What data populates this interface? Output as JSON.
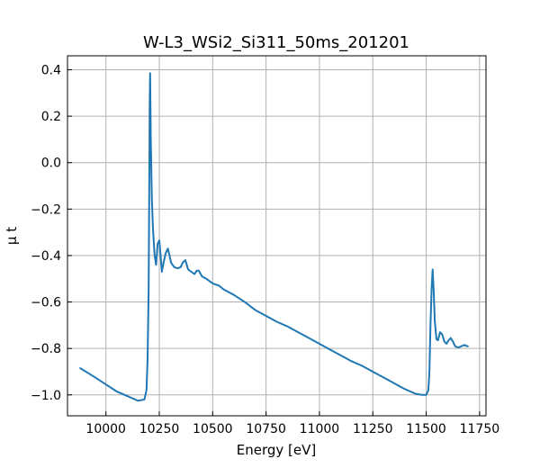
{
  "chart_data": {
    "type": "line",
    "title": "W-L3_WSi2_Si311_50ms_201201",
    "xlabel": "Energy [eV]",
    "ylabel": "μ t",
    "xlim": [
      9820,
      11780
    ],
    "ylim": [
      -1.09,
      0.46
    ],
    "xticks": [
      10000,
      10250,
      10500,
      10750,
      11000,
      11250,
      11500,
      11750
    ],
    "xtick_labels": [
      "10000",
      "10250",
      "10500",
      "10750",
      "11000",
      "11250",
      "11500",
      "11750"
    ],
    "yticks": [
      -1.0,
      -0.8,
      -0.6,
      -0.4,
      -0.2,
      0.0,
      0.2,
      0.4
    ],
    "ytick_labels": [
      "−1.0",
      "−0.8",
      "−0.6",
      "−0.4",
      "−0.2",
      "0.0",
      "0.2",
      "0.4"
    ],
    "grid": true,
    "series": [
      {
        "color": "#1f77b4",
        "x": [
          9880,
          9950,
          10000,
          10050,
          10100,
          10150,
          10180,
          10190,
          10195,
          10200,
          10203,
          10205,
          10207,
          10210,
          10215,
          10220,
          10228,
          10235,
          10242,
          10250,
          10256,
          10262,
          10270,
          10280,
          10290,
          10298,
          10305,
          10312,
          10320,
          10335,
          10350,
          10360,
          10372,
          10385,
          10400,
          10415,
          10425,
          10435,
          10450,
          10470,
          10500,
          10530,
          10550,
          10600,
          10650,
          10700,
          10750,
          10800,
          10850,
          10900,
          10950,
          11000,
          11050,
          11100,
          11150,
          11200,
          11250,
          11300,
          11350,
          11400,
          11450,
          11480,
          11500,
          11510,
          11515,
          11520,
          11525,
          11530,
          11535,
          11540,
          11548,
          11555,
          11565,
          11575,
          11585,
          11595,
          11605,
          11615,
          11625,
          11635,
          11645,
          11655,
          11665,
          11680,
          11690,
          11695
        ],
        "y": [
          -0.885,
          -0.925,
          -0.955,
          -0.985,
          -1.005,
          -1.025,
          -1.02,
          -0.98,
          -0.85,
          -0.55,
          -0.1,
          0.25,
          0.385,
          0.1,
          -0.15,
          -0.28,
          -0.4,
          -0.44,
          -0.35,
          -0.335,
          -0.4,
          -0.47,
          -0.43,
          -0.39,
          -0.37,
          -0.4,
          -0.43,
          -0.44,
          -0.45,
          -0.455,
          -0.45,
          -0.43,
          -0.42,
          -0.46,
          -0.47,
          -0.48,
          -0.465,
          -0.465,
          -0.49,
          -0.5,
          -0.52,
          -0.53,
          -0.545,
          -0.57,
          -0.6,
          -0.635,
          -0.66,
          -0.685,
          -0.705,
          -0.73,
          -0.755,
          -0.78,
          -0.805,
          -0.83,
          -0.855,
          -0.875,
          -0.9,
          -0.925,
          -0.95,
          -0.975,
          -0.995,
          -1.0,
          -1.0,
          -0.98,
          -0.9,
          -0.7,
          -0.55,
          -0.46,
          -0.55,
          -0.68,
          -0.76,
          -0.765,
          -0.73,
          -0.74,
          -0.77,
          -0.78,
          -0.765,
          -0.755,
          -0.77,
          -0.79,
          -0.795,
          -0.795,
          -0.79,
          -0.785,
          -0.79,
          -0.79
        ]
      }
    ]
  }
}
